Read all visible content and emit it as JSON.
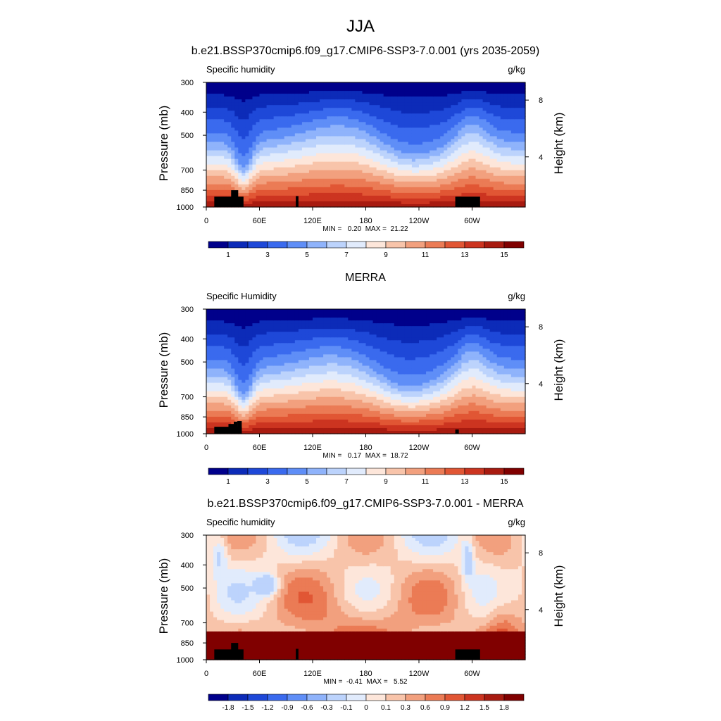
{
  "figure": {
    "title": "JJA"
  },
  "chart_data": [
    {
      "type": "heatmap",
      "title": "b.e21.BSSP370cmip6.f09_g17.CMIP6-SSP3-7.0.001 (yrs 2035-2059)",
      "left_label": "Specific humidity",
      "units": "g/kg",
      "ylabel": "Pressure (mb)",
      "ylabel_right": "Height (km)",
      "x_ticks": [
        "0",
        "60E",
        "120E",
        "180",
        "120W",
        "60W"
      ],
      "x_tick_values": [
        0,
        60,
        120,
        180,
        240,
        300
      ],
      "xlim": [
        0,
        360
      ],
      "y_ticks": [
        "300",
        "400",
        "500",
        "700",
        "850",
        "1000"
      ],
      "y_tick_values": [
        300,
        400,
        500,
        700,
        850,
        1000
      ],
      "ylim": [
        1000,
        300
      ],
      "y_scale": "log",
      "right_ticks": [
        "8",
        "4"
      ],
      "right_tick_pressures": [
        356,
        616
      ],
      "min_max": "MIN =   0.20  MAX =  21.22",
      "colorbar": {
        "labels": [
          "1",
          "3",
          "5",
          "7",
          "9",
          "11",
          "13",
          "15"
        ],
        "colors": [
          "#00008b",
          "#0c2bb8",
          "#1e48d8",
          "#3a6aee",
          "#5f8ef7",
          "#8fb3fb",
          "#bcd3fc",
          "#e1ebfc",
          "#fde6da",
          "#f8c4aa",
          "#f2a07e",
          "#eb7b55",
          "#e15634",
          "#cc3420",
          "#a81b10",
          "#800000"
        ]
      }
    },
    {
      "type": "heatmap",
      "title": "MERRA",
      "left_label": "Specific Humidity",
      "units": "g/kg",
      "ylabel": "Pressure (mb)",
      "ylabel_right": "Height (km)",
      "x_ticks": [
        "0",
        "60E",
        "120E",
        "180",
        "120W",
        "60W"
      ],
      "x_tick_values": [
        0,
        60,
        120,
        180,
        240,
        300
      ],
      "xlim": [
        0,
        360
      ],
      "y_ticks": [
        "300",
        "400",
        "500",
        "700",
        "850",
        "1000"
      ],
      "y_tick_values": [
        300,
        400,
        500,
        700,
        850,
        1000
      ],
      "ylim": [
        1000,
        300
      ],
      "y_scale": "log",
      "right_ticks": [
        "8",
        "4"
      ],
      "right_tick_pressures": [
        356,
        616
      ],
      "min_max": "MIN =   0.17  MAX =  18.72",
      "colorbar": {
        "labels": [
          "1",
          "3",
          "5",
          "7",
          "9",
          "11",
          "13",
          "15"
        ],
        "colors": [
          "#00008b",
          "#0c2bb8",
          "#1e48d8",
          "#3a6aee",
          "#5f8ef7",
          "#8fb3fb",
          "#bcd3fc",
          "#e1ebfc",
          "#fde6da",
          "#f8c4aa",
          "#f2a07e",
          "#eb7b55",
          "#e15634",
          "#cc3420",
          "#a81b10",
          "#800000"
        ]
      }
    },
    {
      "type": "heatmap",
      "title": "b.e21.BSSP370cmip6.f09_g17.CMIP6-SSP3-7.0.001 - MERRA",
      "left_label": "Specific humidity",
      "units": "g/kg",
      "ylabel": "Pressure (mb)",
      "ylabel_right": "Height (km)",
      "x_ticks": [
        "0",
        "60E",
        "120E",
        "180",
        "120W",
        "60W"
      ],
      "x_tick_values": [
        0,
        60,
        120,
        180,
        240,
        300
      ],
      "xlim": [
        0,
        360
      ],
      "y_ticks": [
        "300",
        "400",
        "500",
        "700",
        "850",
        "1000"
      ],
      "y_tick_values": [
        300,
        400,
        500,
        700,
        850,
        1000
      ],
      "ylim": [
        1000,
        300
      ],
      "y_scale": "log",
      "right_ticks": [
        "8",
        "4"
      ],
      "right_tick_pressures": [
        356,
        616
      ],
      "min_max": "MIN =  -0.41  MAX =   5.52",
      "colorbar": {
        "labels": [
          "-1.8",
          "-1.5",
          "-1.2",
          "-0.9",
          "-0.6",
          "-0.3",
          "-0.1",
          "0",
          "0.1",
          "0.3",
          "0.6",
          "0.9",
          "1.2",
          "1.5",
          "1.8"
        ],
        "colors": [
          "#00008b",
          "#0c2bb8",
          "#1e48d8",
          "#3a6aee",
          "#5f8ef7",
          "#8fb3fb",
          "#bcd3fc",
          "#e1ebfc",
          "#fde6da",
          "#f8c4aa",
          "#f2a07e",
          "#eb7b55",
          "#e15634",
          "#cc3420",
          "#a81b10",
          "#800000"
        ]
      }
    }
  ]
}
